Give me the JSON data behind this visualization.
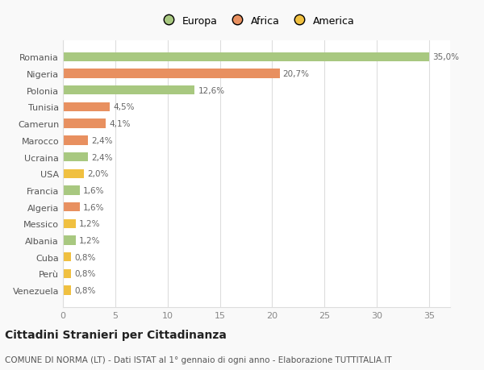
{
  "categories": [
    "Venezuela",
    "Perù",
    "Cuba",
    "Albania",
    "Messico",
    "Algeria",
    "Francia",
    "USA",
    "Ucraina",
    "Marocco",
    "Camerun",
    "Tunisia",
    "Polonia",
    "Nigeria",
    "Romania"
  ],
  "values": [
    0.8,
    0.8,
    0.8,
    1.2,
    1.2,
    1.6,
    1.6,
    2.0,
    2.4,
    2.4,
    4.1,
    4.5,
    12.6,
    20.7,
    35.0
  ],
  "labels": [
    "0,8%",
    "0,8%",
    "0,8%",
    "1,2%",
    "1,2%",
    "1,6%",
    "1,6%",
    "2,0%",
    "2,4%",
    "2,4%",
    "4,1%",
    "4,5%",
    "12,6%",
    "20,7%",
    "35,0%"
  ],
  "colors": [
    "#f0c040",
    "#f0c040",
    "#f0c040",
    "#a8c880",
    "#f0c040",
    "#e89060",
    "#a8c880",
    "#f0c040",
    "#a8c880",
    "#e89060",
    "#e89060",
    "#e89060",
    "#a8c880",
    "#e89060",
    "#a8c880"
  ],
  "legend_labels": [
    "Europa",
    "Africa",
    "America"
  ],
  "legend_colors": [
    "#a8c880",
    "#e89060",
    "#f0c040"
  ],
  "title": "Cittadini Stranieri per Cittadinanza",
  "subtitle": "COMUNE DI NORMA (LT) - Dati ISTAT al 1° gennaio di ogni anno - Elaborazione TUTTITALIA.IT",
  "xlim": [
    0,
    37
  ],
  "xticks": [
    0,
    5,
    10,
    15,
    20,
    25,
    30,
    35
  ],
  "bg_color": "#f9f9f9",
  "plot_bg_color": "#ffffff",
  "grid_color": "#dddddd",
  "title_fontsize": 10,
  "subtitle_fontsize": 7.5,
  "label_fontsize": 7.5,
  "tick_fontsize": 8,
  "legend_fontsize": 9
}
